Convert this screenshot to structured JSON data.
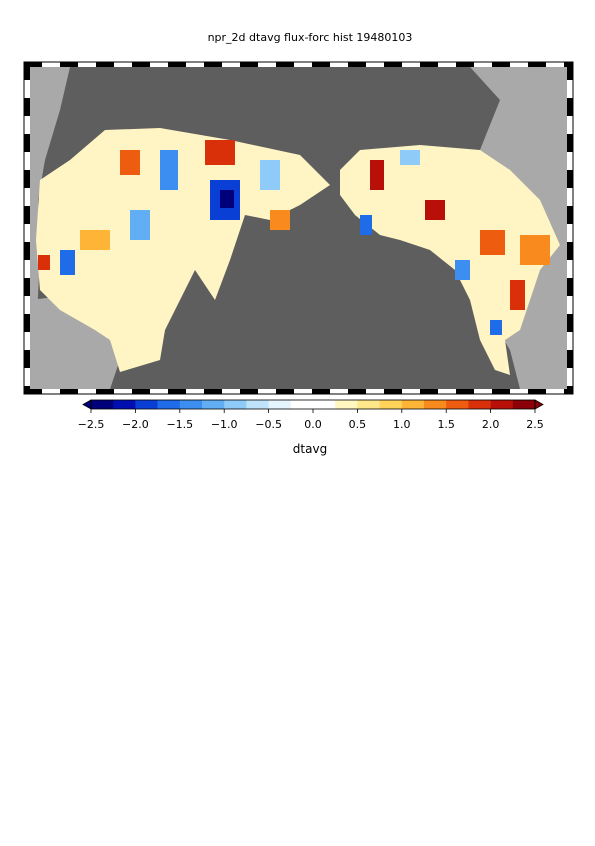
{
  "title": "npr_2d dtavg flux-forc hist 19480103",
  "colorbar": {
    "label": "dtavg",
    "lim": [
      -2.5,
      2.5
    ],
    "ticks": [
      {
        "value": -2.5,
        "label": "−2.5"
      },
      {
        "value": -2,
        "label": "−2.0"
      },
      {
        "value": -1.5,
        "label": "−1.5"
      },
      {
        "value": -1,
        "label": "−1.0"
      },
      {
        "value": -0.5,
        "label": "−0.5"
      },
      {
        "value": 0,
        "label": "0.0"
      },
      {
        "value": 0.5,
        "label": "0.5"
      },
      {
        "value": 1,
        "label": "1.0"
      },
      {
        "value": 1.5,
        "label": "1.5"
      },
      {
        "value": 2,
        "label": "2.0"
      },
      {
        "value": 2.5,
        "label": "2.5"
      }
    ],
    "colors": [
      "#00007a",
      "#0010b0",
      "#0a3fd6",
      "#1f6ce8",
      "#3c8ff0",
      "#62aef5",
      "#8fcbf8",
      "#bfe3fb",
      "#e6f4fd",
      "#ffffff",
      "#ffffff",
      "#fff6c0",
      "#ffe88a",
      "#ffd35a",
      "#fdb437",
      "#f88a1e",
      "#ee5c10",
      "#d9300a",
      "#b81008",
      "#8a0006"
    ]
  }
}
